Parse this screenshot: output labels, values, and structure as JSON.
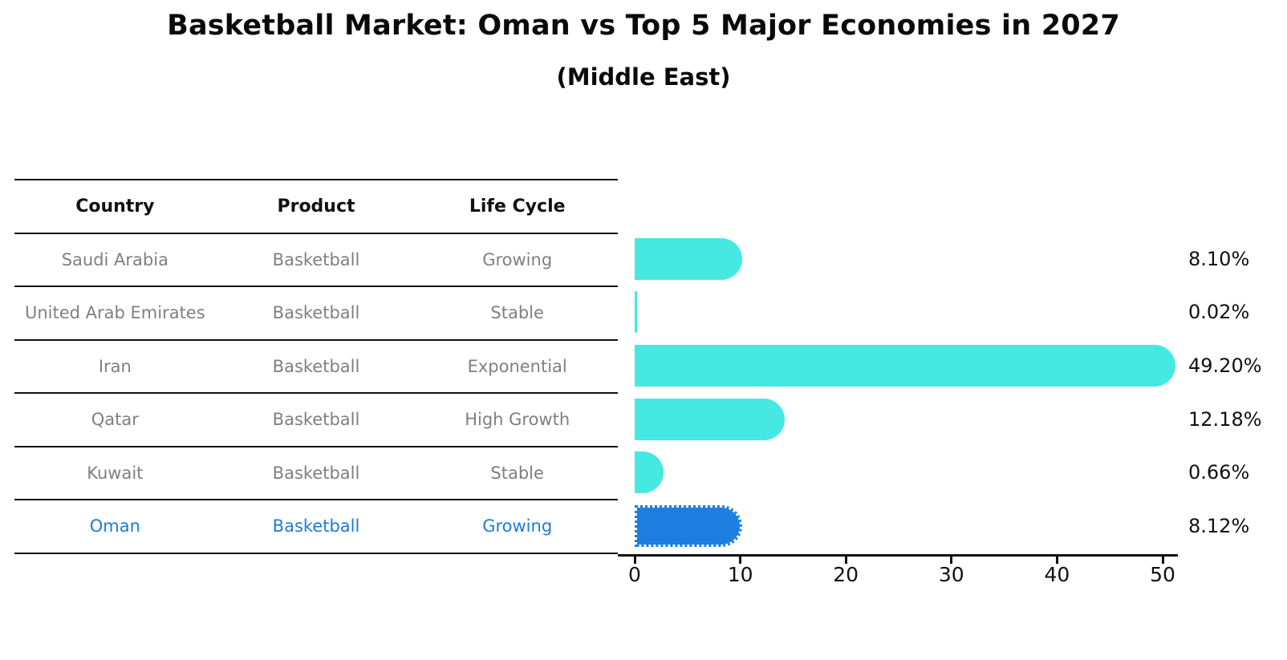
{
  "title": "Basketball Market: Oman vs Top 5 Major Economies in 2027",
  "subtitle": "(Middle East)",
  "table": {
    "headers": [
      "Country",
      "Product",
      "Life Cycle"
    ],
    "rows": [
      {
        "country": "Saudi Arabia",
        "product": "Basketball",
        "life_cycle": "Growing",
        "highlighted": false
      },
      {
        "country": "United Arab Emirates",
        "product": "Basketball",
        "life_cycle": "Stable",
        "highlighted": false
      },
      {
        "country": "Iran",
        "product": "Basketball",
        "life_cycle": "Exponential",
        "highlighted": false
      },
      {
        "country": "Qatar",
        "product": "Basketball",
        "life_cycle": "High Growth",
        "highlighted": false
      },
      {
        "country": "Kuwait",
        "product": "Basketball",
        "life_cycle": "Stable",
        "highlighted": false
      },
      {
        "country": "Oman",
        "product": "Basketball",
        "life_cycle": "Growing",
        "highlighted": true
      }
    ]
  },
  "chart_data": {
    "type": "bar",
    "orientation": "horizontal",
    "title": "Basketball Market: Oman vs Top 5 Major Economies in 2027",
    "subtitle": "(Middle East)",
    "categories": [
      "Saudi Arabia",
      "United Arab Emirates",
      "Iran",
      "Qatar",
      "Kuwait",
      "Oman"
    ],
    "values": [
      8.1,
      0.02,
      49.2,
      12.18,
      0.66,
      8.12
    ],
    "value_labels": [
      "8.10%",
      "0.02%",
      "49.20%",
      "12.18%",
      "0.66%",
      "8.12%"
    ],
    "xlim": [
      0,
      50
    ],
    "x_ticks": [
      0,
      10,
      20,
      30,
      40,
      50
    ],
    "x_tick_labels": [
      "0",
      "10",
      "20",
      "30",
      "40",
      "50"
    ],
    "grid": false,
    "legend": false,
    "bar_color": "#46e8e2",
    "highlight_color": "#1e7de0",
    "highlight_index": 5
  },
  "colors": {
    "background": "#ffffff",
    "bar_cyan": "#46e8e2",
    "bar_blue": "#1e7de0",
    "highlight_text": "#1c7cd8",
    "table_text": "#7f7f7f",
    "heading_text": "#111111"
  }
}
